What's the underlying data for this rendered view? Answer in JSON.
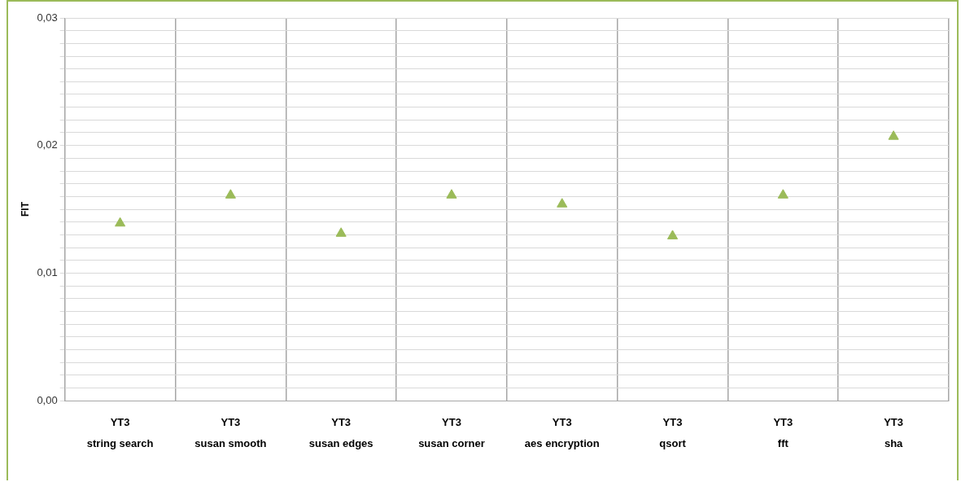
{
  "chart_data": {
    "type": "scatter",
    "ylabel": "FIT",
    "categories": [
      "YT3\nstring search",
      "YT3\nsusan smooth",
      "YT3\nsusan edges",
      "YT3\nsusan corner",
      "YT3\naes encryption",
      "YT3\nqsort",
      "YT3\nfft",
      "YT3\nsha"
    ],
    "series": [
      {
        "color": "#9bbb59",
        "values": [
          0.0139,
          0.0161,
          0.0131,
          0.0161,
          0.0154,
          0.0129,
          0.0161,
          0.0207
        ]
      }
    ],
    "ylim": [
      0,
      0.03
    ],
    "yticks": [
      {
        "value": 0,
        "label": "0,00"
      },
      {
        "value": 0.001,
        "label": null
      },
      {
        "value": 0.002,
        "label": null
      },
      {
        "value": 0.003,
        "label": null
      },
      {
        "value": 0.004,
        "label": null
      },
      {
        "value": 0.005,
        "label": null
      },
      {
        "value": 0.006,
        "label": null
      },
      {
        "value": 0.007,
        "label": null
      },
      {
        "value": 0.008,
        "label": null
      },
      {
        "value": 0.009,
        "label": null
      },
      {
        "value": 0.01,
        "label": "0,01"
      },
      {
        "value": 0.011,
        "label": null
      },
      {
        "value": 0.012,
        "label": null
      },
      {
        "value": 0.013,
        "label": null
      },
      {
        "value": 0.014,
        "label": null
      },
      {
        "value": 0.015,
        "label": null
      },
      {
        "value": 0.016,
        "label": null
      },
      {
        "value": 0.017,
        "label": null
      },
      {
        "value": 0.018,
        "label": null
      },
      {
        "value": 0.019,
        "label": null
      },
      {
        "value": 0.02,
        "label": "0,02"
      },
      {
        "value": 0.021,
        "label": null
      },
      {
        "value": 0.022,
        "label": null
      },
      {
        "value": 0.023,
        "label": null
      },
      {
        "value": 0.024,
        "label": null
      },
      {
        "value": 0.025,
        "label": null
      },
      {
        "value": 0.026,
        "label": null
      },
      {
        "value": 0.027,
        "label": null
      },
      {
        "value": 0.028,
        "label": null
      },
      {
        "value": 0.029,
        "label": null
      },
      {
        "value": 0.03,
        "label": "0,03"
      }
    ],
    "grid": true,
    "marker": "triangle"
  }
}
